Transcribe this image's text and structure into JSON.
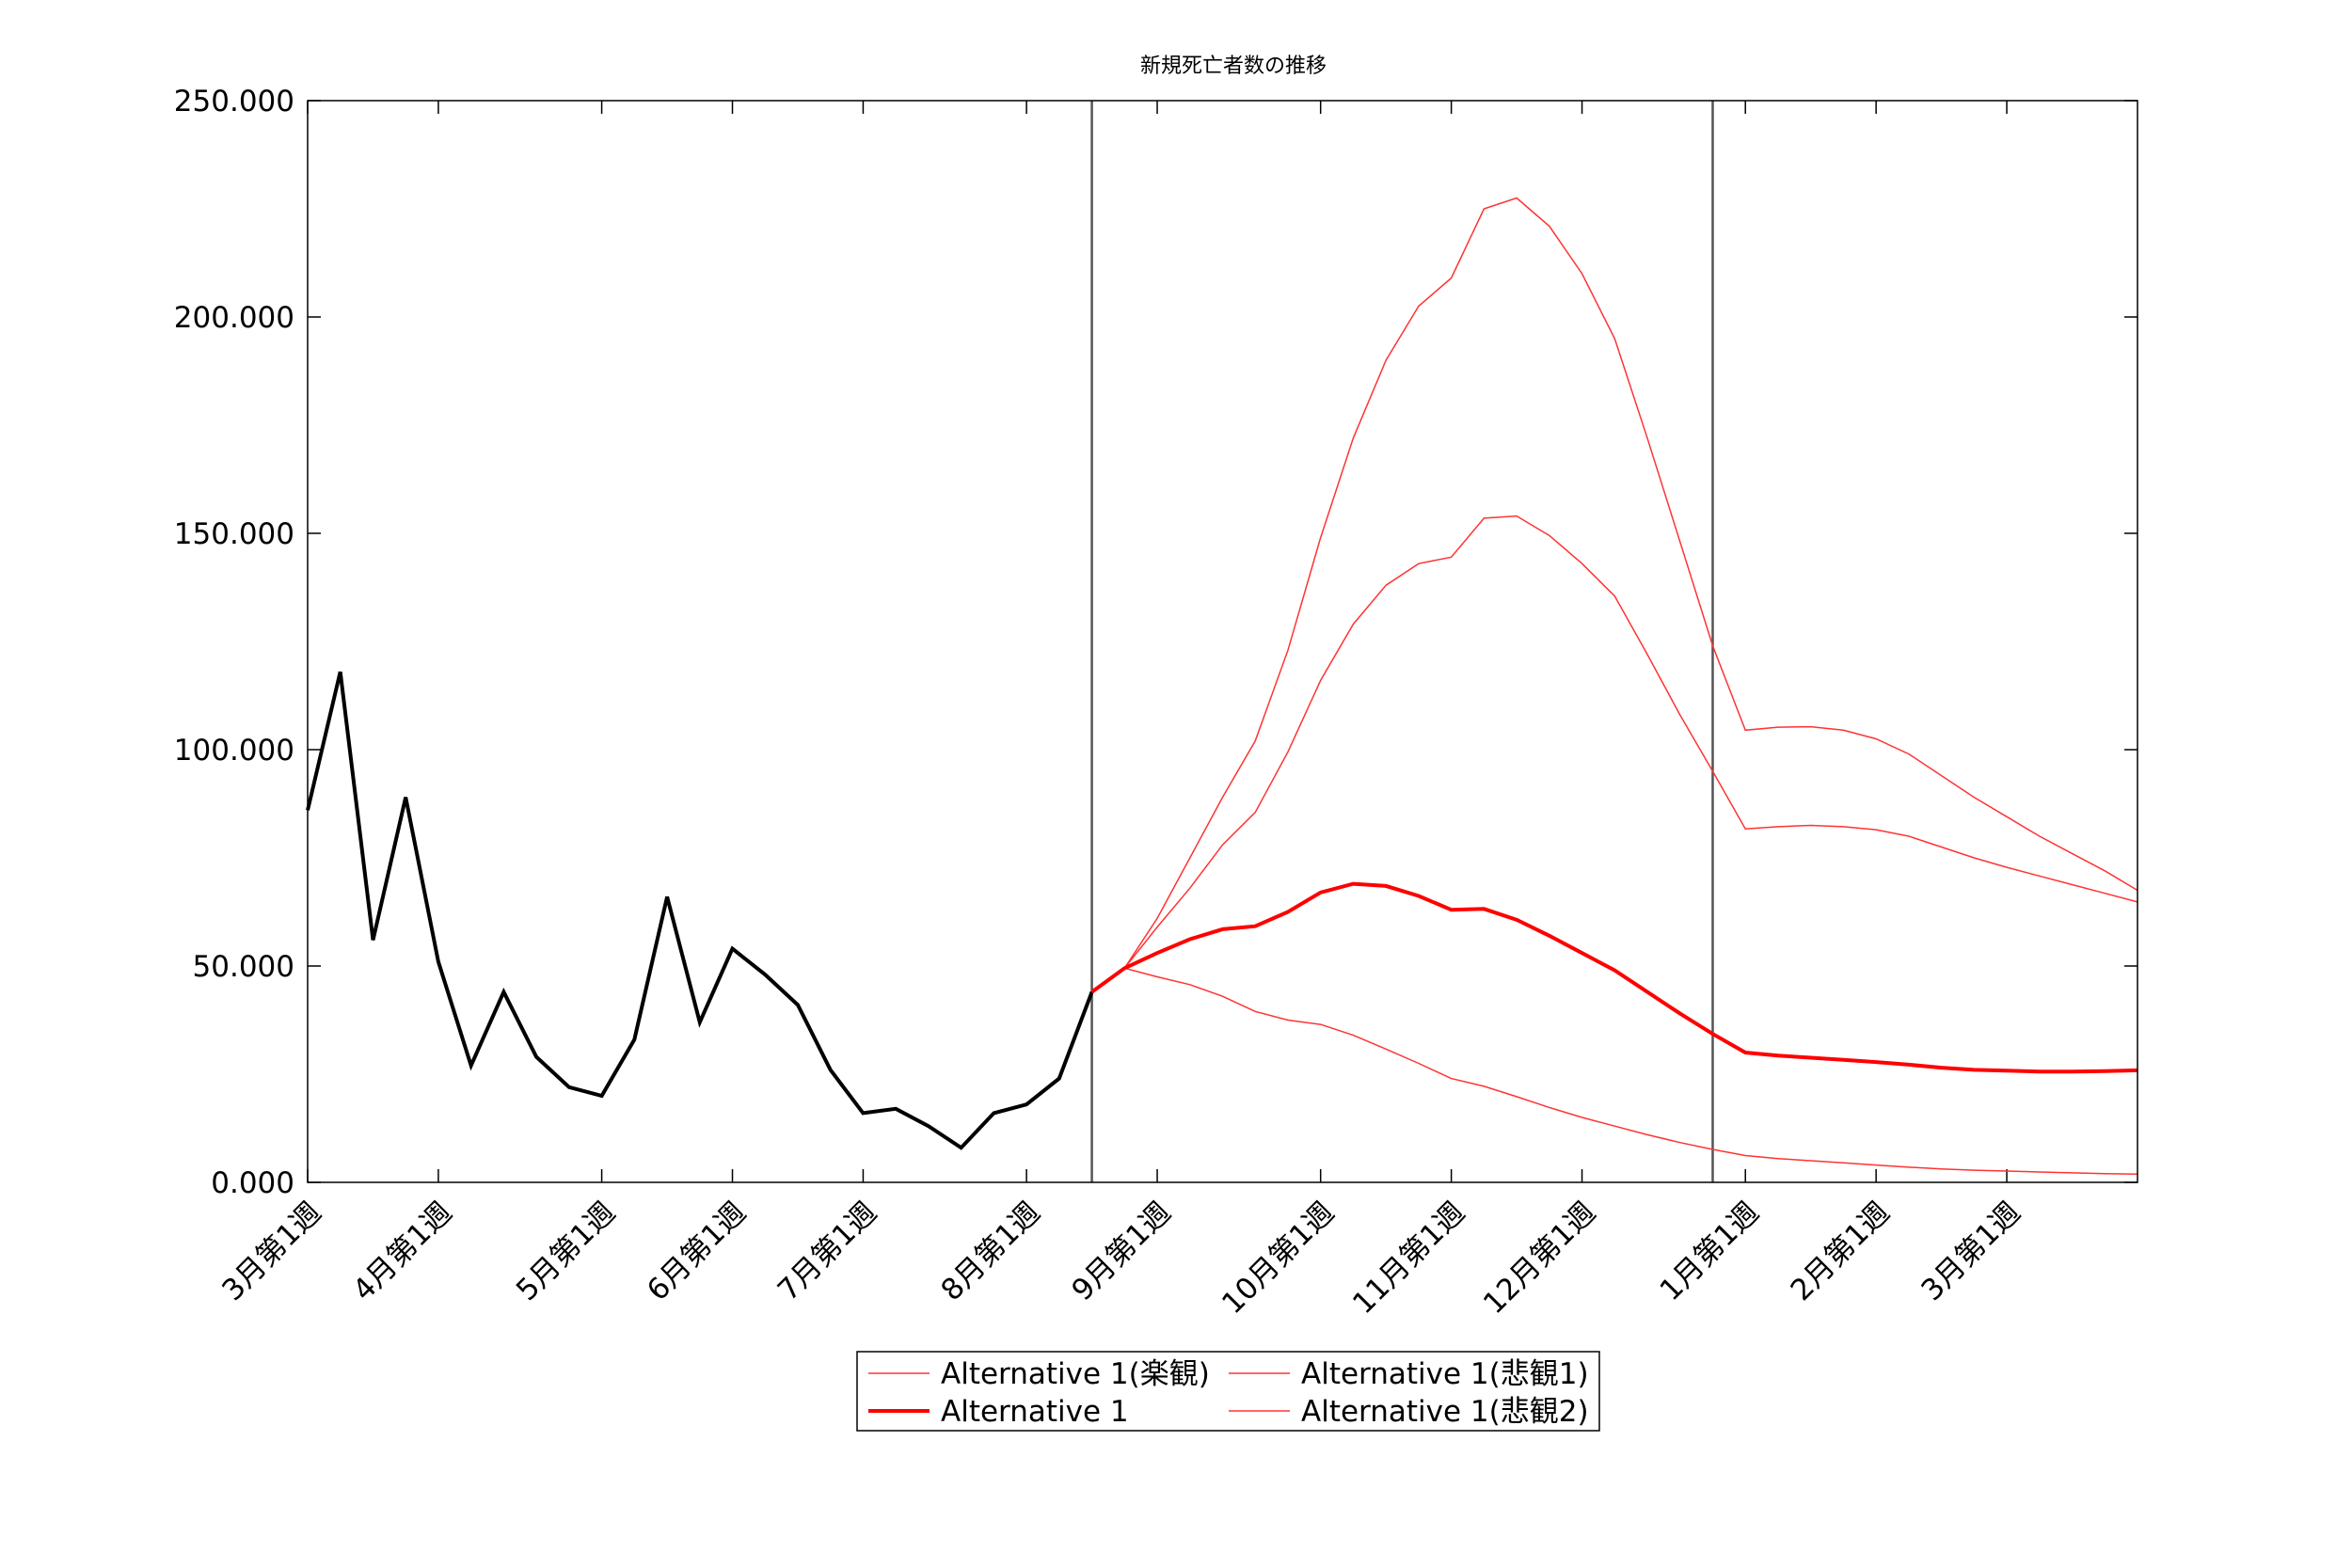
{
  "chart_data": {
    "type": "line",
    "title": "新規死亡者数の推移",
    "xlabel": "",
    "ylabel": "",
    "ylim": [
      0,
      250000
    ],
    "xlim": [
      0,
      56
    ],
    "yticks": [
      {
        "value": 0,
        "label": "0.000"
      },
      {
        "value": 50000,
        "label": "50.000"
      },
      {
        "value": 100000,
        "label": "100.000"
      },
      {
        "value": 150000,
        "label": "150.000"
      },
      {
        "value": 200000,
        "label": "200.000"
      },
      {
        "value": 250000,
        "label": "250.000"
      }
    ],
    "xticks": [
      {
        "week": 0,
        "label": "3月第1週"
      },
      {
        "week": 4,
        "label": "4月第1週"
      },
      {
        "week": 9,
        "label": "5月第1週"
      },
      {
        "week": 13,
        "label": "6月第1週"
      },
      {
        "week": 17,
        "label": "7月第1週"
      },
      {
        "week": 22,
        "label": "8月第1週"
      },
      {
        "week": 26,
        "label": "9月第1週"
      },
      {
        "week": 31,
        "label": "10月第1週"
      },
      {
        "week": 35,
        "label": "11月第1週"
      },
      {
        "week": 39,
        "label": "12月第1週"
      },
      {
        "week": 44,
        "label": "1月第1週"
      },
      {
        "week": 48,
        "label": "2月第1週"
      },
      {
        "week": 52,
        "label": "3月第1週"
      }
    ],
    "vlines": [
      24,
      43
    ],
    "grid": false,
    "legend_position": "bottom",
    "legend_columns": 2,
    "series": [
      {
        "name": "",
        "color": "#000000",
        "width": 4,
        "start_week": 0,
        "values": [
          86000,
          118000,
          56000,
          89000,
          51000,
          27000,
          44000,
          29000,
          22000,
          20000,
          33000,
          66000,
          37000,
          54000,
          48000,
          41000,
          26000,
          16000,
          17000,
          13000,
          8000,
          16000,
          18000,
          24000,
          44000
        ]
      },
      {
        "name": "Alternative 1(楽観)",
        "color": "#ff3333",
        "width": 1.5,
        "start_week": 24,
        "values": [
          44000,
          49500,
          47500,
          45700,
          43000,
          39500,
          37500,
          36500,
          34000,
          30800,
          27500,
          24000,
          22200,
          19800,
          17300,
          15000,
          13000,
          11000,
          9200,
          7600,
          6200,
          5500,
          5000,
          4500,
          4000,
          3500,
          3100,
          2800,
          2600,
          2400,
          2200,
          2000,
          1900
        ]
      },
      {
        "name": "Alternative 1(悲観1)",
        "color": "#ff3333",
        "width": 1.5,
        "start_week": 24,
        "values": [
          44000,
          49500,
          59000,
          68000,
          78000,
          85500,
          99500,
          116000,
          129000,
          138000,
          143000,
          144500,
          153500,
          154000,
          149500,
          143000,
          135500,
          122000,
          108000,
          95000,
          81700,
          82200,
          82500,
          82200,
          81500,
          80000,
          77500,
          75000,
          72800,
          70800,
          68800,
          66800,
          64800
        ]
      },
      {
        "name": "Alternative 1(悲観2)",
        "color": "#ff3333",
        "width": 1.5,
        "start_week": 24,
        "values": [
          44000,
          49500,
          61000,
          75000,
          89000,
          102000,
          123000,
          149000,
          172000,
          190000,
          202500,
          209000,
          225000,
          227500,
          221000,
          210000,
          195000,
          172000,
          148000,
          124000,
          104500,
          105200,
          105300,
          104500,
          102500,
          99000,
          94000,
          89000,
          84500,
          80000,
          76000,
          72000,
          67500
        ]
      },
      {
        "name": "Alternative 1",
        "color": "#ff0000",
        "width": 4,
        "start_week": 24,
        "values": [
          44000,
          49500,
          53000,
          56200,
          58500,
          59200,
          62500,
          67000,
          69000,
          68500,
          66200,
          63000,
          63200,
          60700,
          57000,
          53000,
          49000,
          44000,
          39000,
          34300,
          30000,
          29300,
          28800,
          28300,
          27800,
          27200,
          26500,
          26000,
          25800,
          25600,
          25600,
          25700,
          25900
        ]
      }
    ],
    "legend": [
      {
        "label": "Alternative 1(楽観)",
        "color": "#ff3333",
        "width": 1.5
      },
      {
        "label": "Alternative 1(悲観1)",
        "color": "#ff3333",
        "width": 1.5
      },
      {
        "label": "Alternative 1",
        "color": "#ff0000",
        "width": 4
      },
      {
        "label": "Alternative 1(悲観2)",
        "color": "#ff3333",
        "width": 1.5
      }
    ]
  }
}
